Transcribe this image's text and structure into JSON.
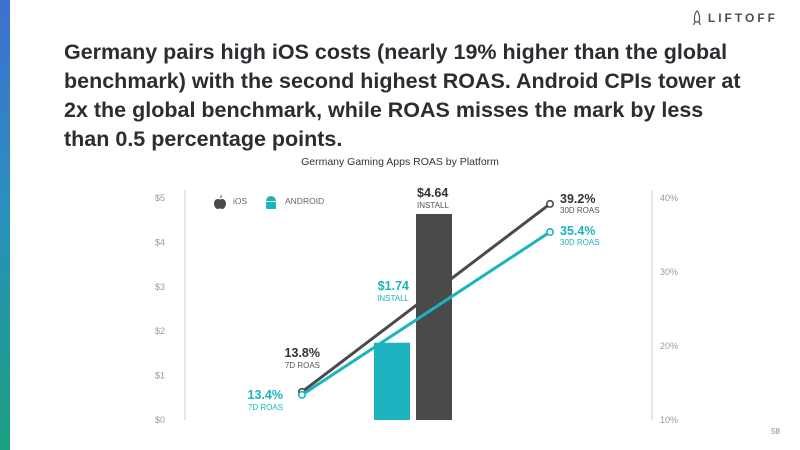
{
  "brand": {
    "name": "LIFTOFF",
    "colors": {
      "ios": "#4a4a4a",
      "android": "#1bb3bf",
      "axis_text": "#9a9a9a",
      "title_text": "#2b2d33"
    }
  },
  "headline": "Germany pairs high iOS costs (nearly 19% higher than the global benchmark) with the second highest ROAS. Android CPIs tower at 2x the global benchmark, while ROAS misses the mark by less than 0.5 percentage points.",
  "page_number": "58",
  "chart_data": {
    "type": "bar",
    "title": "Germany Gaming Apps ROAS by Platform",
    "legend": {
      "placement": "top-left",
      "items": [
        {
          "label": "iOS",
          "icon": "apple-icon",
          "color": "#4a4a4a"
        },
        {
          "label": "ANDROID",
          "icon": "android-icon",
          "color": "#1bb3bf"
        }
      ]
    },
    "left_axis": {
      "ticks": [
        "$0",
        "$1",
        "$2",
        "$3",
        "$4",
        "$5"
      ],
      "range": [
        0,
        5
      ]
    },
    "right_axis": {
      "ticks": [
        "10%",
        "20%",
        "30%",
        "40%"
      ],
      "range": [
        10,
        40
      ]
    },
    "bars": [
      {
        "series": "ANDROID",
        "value": 1.74,
        "value_label": "$1.74",
        "sub_label": "INSTALL",
        "color": "#1bb3bf"
      },
      {
        "series": "iOS",
        "value": 4.64,
        "value_label": "$4.64",
        "sub_label": "INSTALL",
        "color": "#4a4a4a"
      }
    ],
    "lines": [
      {
        "series": "iOS",
        "color": "#4a4a4a",
        "points": [
          {
            "x": "7D",
            "value": 13.8,
            "value_label": "13.8%",
            "sub_label": "7D ROAS"
          },
          {
            "x": "30D",
            "value": 39.2,
            "value_label": "39.2%",
            "sub_label": "30D ROAS"
          }
        ]
      },
      {
        "series": "ANDROID",
        "color": "#1bb3bf",
        "points": [
          {
            "x": "7D",
            "value": 13.4,
            "value_label": "13.4%",
            "sub_label": "7D ROAS"
          },
          {
            "x": "30D",
            "value": 35.4,
            "value_label": "35.4%",
            "sub_label": "30D ROAS"
          }
        ]
      }
    ],
    "grid": false
  }
}
